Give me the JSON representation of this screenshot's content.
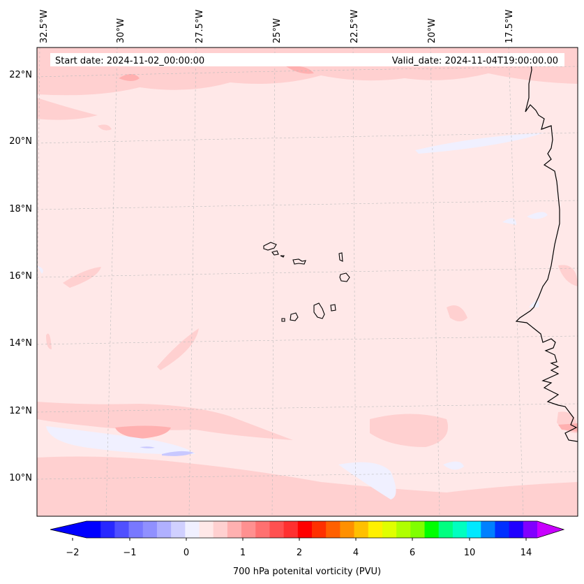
{
  "header": {
    "start_date": "Start date: 2024-11-02_00:00:00",
    "valid_date": "Valid_date: 2024-11-04T19:00:00.00"
  },
  "grid": {
    "lon_labels": [
      "32.5°W",
      "30°W",
      "27.5°W",
      "25°W",
      "22.5°W",
      "20°W",
      "17.5°W"
    ],
    "lat_labels": [
      "22°N",
      "20°N",
      "18°N",
      "16°N",
      "14°N",
      "12°N",
      "10°N"
    ]
  },
  "colorbar": {
    "title": "700 hPa potenital vorticity (PVU)",
    "tick_labels": [
      "−2",
      "−1",
      "0",
      "1",
      "2",
      "4",
      "6",
      "10",
      "14"
    ],
    "colors": [
      "#0000ff",
      "#2828ff",
      "#5050ff",
      "#7878ff",
      "#9090ff",
      "#b0b0ff",
      "#d0d0ff",
      "#f0f0ff",
      "#ffe8e8",
      "#ffd0d0",
      "#ffb0b0",
      "#ff9090",
      "#ff7070",
      "#ff5050",
      "#ff3030",
      "#ff0000",
      "#ff3000",
      "#ff6000",
      "#ff9000",
      "#ffc000",
      "#fff000",
      "#e0ff00",
      "#b0ff00",
      "#80ff00",
      "#00ff00",
      "#00ff80",
      "#00ffc0",
      "#00e8ff",
      "#0080ff",
      "#0030ff",
      "#2000ff",
      "#8000ff"
    ],
    "under_color": "#0000ff",
    "over_color": "#c800ff"
  },
  "map": {
    "region": "Cape Verde / West Africa coast",
    "background_color": "#ffe8e8",
    "coastline_color": "#000000"
  }
}
